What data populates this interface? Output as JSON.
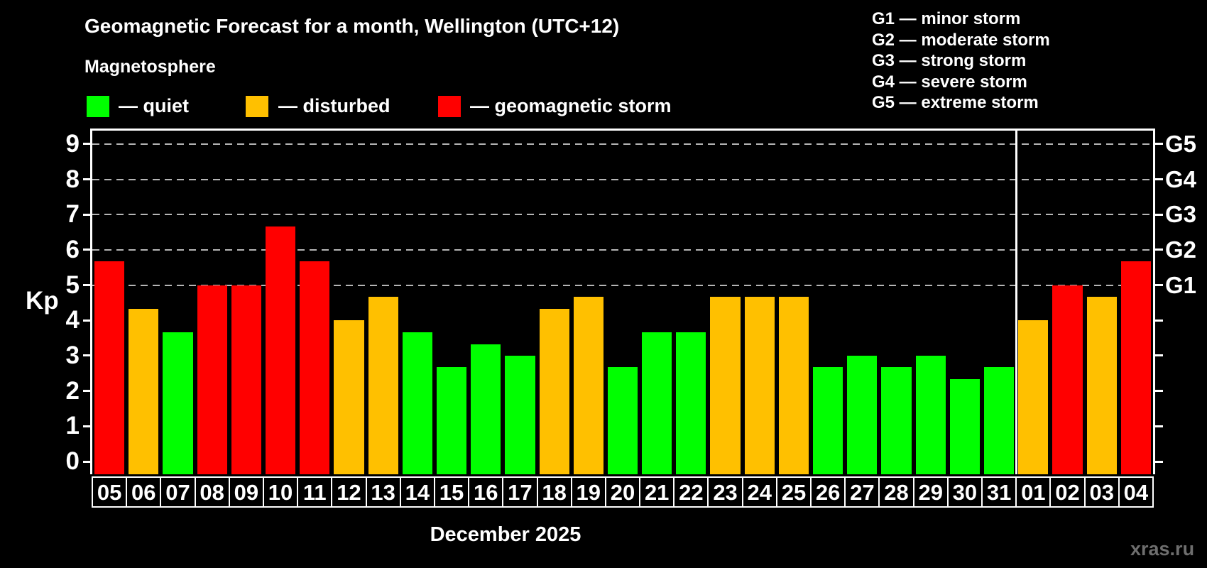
{
  "header": {
    "title": "Geomagnetic Forecast for a month, Wellington (UTC+12)",
    "subtitle": "Magnetosphere"
  },
  "legend": {
    "items": [
      {
        "key": "quiet",
        "label": "— quiet",
        "color": "#00ff00"
      },
      {
        "key": "disturbed",
        "label": "— disturbed",
        "color": "#ffc000"
      },
      {
        "key": "storm",
        "label": "— geomagnetic storm",
        "color": "#ff0000"
      }
    ]
  },
  "storm_scale": {
    "items": [
      {
        "label": "G1 — minor storm"
      },
      {
        "label": "G2 — moderate storm"
      },
      {
        "label": "G3 — strong storm"
      },
      {
        "label": "G4 — severe storm"
      },
      {
        "label": "G5 — extreme storm"
      }
    ]
  },
  "chart_data": {
    "type": "bar",
    "title": "Geomagnetic Forecast for a month, Wellington (UTC+12)",
    "ylabel": "Kp",
    "xlabel": "December 2025",
    "ylim": [
      -0.375,
      9.375
    ],
    "y_ticks": [
      0,
      1,
      2,
      3,
      4,
      5,
      6,
      7,
      8,
      9
    ],
    "grid_kp": [
      5,
      6,
      7,
      8,
      9
    ],
    "right_axis": [
      {
        "label": "G1",
        "kp": 5
      },
      {
        "label": "G2",
        "kp": 6
      },
      {
        "label": "G3",
        "kp": 7
      },
      {
        "label": "G4",
        "kp": 8
      },
      {
        "label": "G5",
        "kp": 9
      }
    ],
    "series_colors": {
      "quiet": "#00ff00",
      "disturbed": "#ffc000",
      "storm": "#ff0000"
    },
    "legend_position": "top-left",
    "grid": "dashed-horizontal-kp5-to-kp9",
    "month_separator_after_index": 26,
    "days": [
      {
        "day": "05",
        "kp": 5.67,
        "condition": "storm"
      },
      {
        "day": "06",
        "kp": 4.33,
        "condition": "disturbed"
      },
      {
        "day": "07",
        "kp": 3.67,
        "condition": "quiet"
      },
      {
        "day": "08",
        "kp": 5.0,
        "condition": "storm"
      },
      {
        "day": "09",
        "kp": 5.0,
        "condition": "storm"
      },
      {
        "day": "10",
        "kp": 6.67,
        "condition": "storm"
      },
      {
        "day": "11",
        "kp": 5.67,
        "condition": "storm"
      },
      {
        "day": "12",
        "kp": 4.0,
        "condition": "disturbed"
      },
      {
        "day": "13",
        "kp": 4.67,
        "condition": "disturbed"
      },
      {
        "day": "14",
        "kp": 3.67,
        "condition": "quiet"
      },
      {
        "day": "15",
        "kp": 2.67,
        "condition": "quiet"
      },
      {
        "day": "16",
        "kp": 3.33,
        "condition": "quiet"
      },
      {
        "day": "17",
        "kp": 3.0,
        "condition": "quiet"
      },
      {
        "day": "18",
        "kp": 4.33,
        "condition": "disturbed"
      },
      {
        "day": "19",
        "kp": 4.67,
        "condition": "disturbed"
      },
      {
        "day": "20",
        "kp": 2.67,
        "condition": "quiet"
      },
      {
        "day": "21",
        "kp": 3.67,
        "condition": "quiet"
      },
      {
        "day": "22",
        "kp": 3.67,
        "condition": "quiet"
      },
      {
        "day": "23",
        "kp": 4.67,
        "condition": "disturbed"
      },
      {
        "day": "24",
        "kp": 4.67,
        "condition": "disturbed"
      },
      {
        "day": "25",
        "kp": 4.67,
        "condition": "disturbed"
      },
      {
        "day": "26",
        "kp": 2.67,
        "condition": "quiet"
      },
      {
        "day": "27",
        "kp": 3.0,
        "condition": "quiet"
      },
      {
        "day": "28",
        "kp": 2.67,
        "condition": "quiet"
      },
      {
        "day": "29",
        "kp": 3.0,
        "condition": "quiet"
      },
      {
        "day": "30",
        "kp": 2.33,
        "condition": "quiet"
      },
      {
        "day": "31",
        "kp": 2.67,
        "condition": "quiet"
      },
      {
        "day": "01",
        "kp": 4.0,
        "condition": "disturbed"
      },
      {
        "day": "02",
        "kp": 5.0,
        "condition": "storm"
      },
      {
        "day": "03",
        "kp": 4.67,
        "condition": "disturbed"
      },
      {
        "day": "04",
        "kp": 5.67,
        "condition": "storm"
      }
    ]
  },
  "footer": {
    "caption": "December 2025",
    "watermark": "xras.ru"
  }
}
